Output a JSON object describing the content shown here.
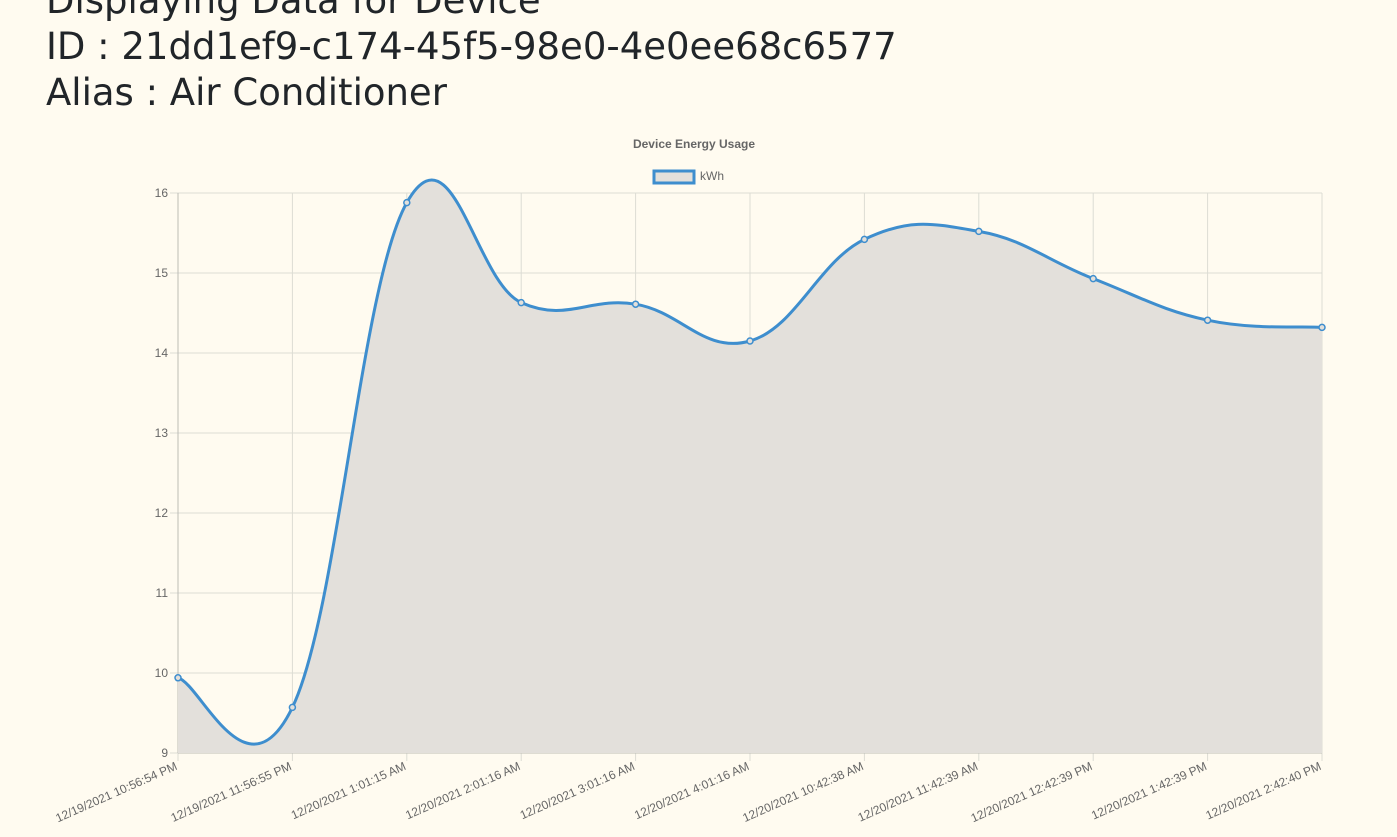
{
  "header": {
    "line1": "Displaying Data for Device",
    "line2": "ID : 21dd1ef9-c174-45f5-98e0-4e0ee68c6577",
    "line3": "Alias : Air Conditioner"
  },
  "chart_data": {
    "type": "line",
    "title": "Device Energy Usage",
    "xlabel": "",
    "ylabel": "",
    "ylim": [
      9,
      16
    ],
    "yticks": [
      9,
      10,
      11,
      12,
      13,
      14,
      15,
      16
    ],
    "grid": true,
    "fill": true,
    "smooth": true,
    "legend_position": "top",
    "colors": {
      "line": "#3e8ece",
      "fill": "#e3e0db",
      "grid": "#dcdcd4",
      "tick_text": "#666666",
      "title_text": "#666666"
    },
    "categories": [
      "12/19/2021 10:56:54 PM",
      "12/19/2021 11:56:55 PM",
      "12/20/2021 1:01:15 AM",
      "12/20/2021 2:01:16 AM",
      "12/20/2021 3:01:16 AM",
      "12/20/2021 4:01:16 AM",
      "12/20/2021 10:42:38 AM",
      "12/20/2021 11:42:39 AM",
      "12/20/2021 12:42:39 PM",
      "12/20/2021 1:42:39 PM",
      "12/20/2021 2:42:40 PM"
    ],
    "series": [
      {
        "name": "kWh",
        "values": [
          9.94,
          9.57,
          15.88,
          14.63,
          14.61,
          14.15,
          15.42,
          15.52,
          14.93,
          14.41,
          14.32
        ]
      }
    ]
  }
}
